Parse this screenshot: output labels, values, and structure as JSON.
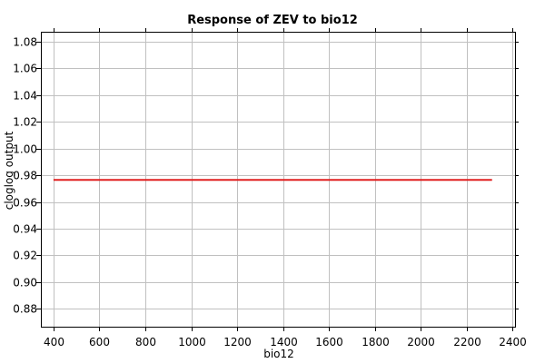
{
  "chart_data": {
    "type": "line",
    "title": "Response of ZEV to bio12",
    "xlabel": "bio12",
    "ylabel": "cloglog output",
    "xlim": [
      345,
      2410
    ],
    "ylim": [
      0.8665,
      1.0875
    ],
    "xticks": [
      400,
      600,
      800,
      1000,
      1200,
      1400,
      1600,
      1800,
      2000,
      2200,
      2400
    ],
    "yticks": [
      0.88,
      0.9,
      0.92,
      0.94,
      0.96,
      0.98,
      1.0,
      1.02,
      1.04,
      1.06,
      1.08
    ],
    "ytick_labels": [
      "0.88",
      "0.90",
      "0.92",
      "0.94",
      "0.96",
      "0.98",
      "1.00",
      "1.02",
      "1.04",
      "1.06",
      "1.08"
    ],
    "grid": true,
    "series": [
      {
        "x": [
          400,
          2310
        ],
        "y": [
          0.9765,
          0.9765
        ],
        "color": "#e02020"
      }
    ],
    "colors": {
      "grid": "#c0c0c0",
      "axis": "#000000",
      "line": "#e02020"
    }
  }
}
